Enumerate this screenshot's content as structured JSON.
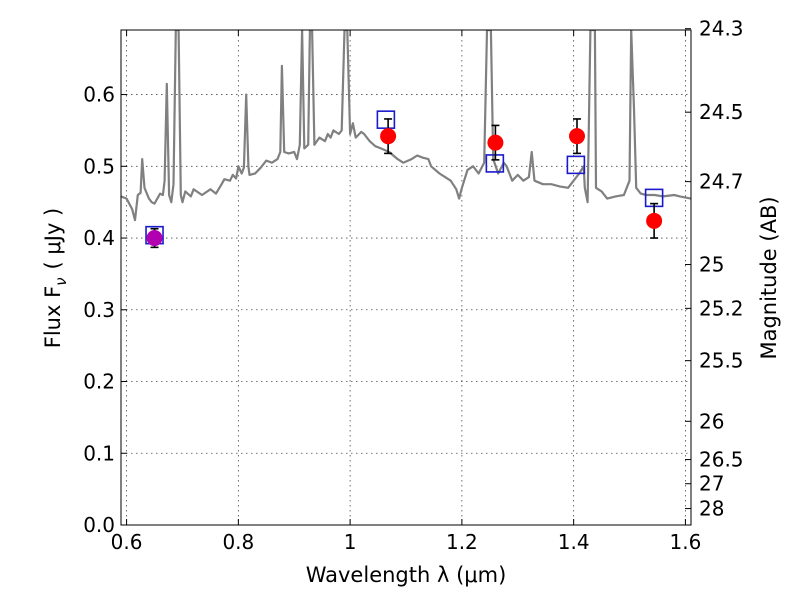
{
  "chart_data": {
    "type": "scatter",
    "xlabel": "Wavelength  λ (μm)",
    "ylabel": "Flux  F",
    "ylabel_subscript": "ν",
    "ylabel_units": "( μJy )",
    "y2label": "Magnitude (AB)",
    "xlim": [
      0.59,
      1.61
    ],
    "ylim": [
      0.0,
      0.69
    ],
    "grid": true,
    "x_ticks": [
      {
        "value": 0.6,
        "label": "0.6"
      },
      {
        "value": 0.8,
        "label": "0.8"
      },
      {
        "value": 1.0,
        "label": "1"
      },
      {
        "value": 1.2,
        "label": "1.2"
      },
      {
        "value": 1.4,
        "label": "1.4"
      },
      {
        "value": 1.6,
        "label": "1.6"
      }
    ],
    "y_ticks": [
      {
        "value": 0.0,
        "label": "0.0"
      },
      {
        "value": 0.1,
        "label": "0.1"
      },
      {
        "value": 0.2,
        "label": "0.2"
      },
      {
        "value": 0.3,
        "label": "0.3"
      },
      {
        "value": 0.4,
        "label": "0.4"
      },
      {
        "value": 0.5,
        "label": "0.5"
      },
      {
        "value": 0.6,
        "label": "0.6"
      }
    ],
    "y2_ticks": [
      {
        "mag": 24.3,
        "label": "24.3"
      },
      {
        "mag": 24.5,
        "label": "24.5"
      },
      {
        "mag": 24.7,
        "label": "24.7"
      },
      {
        "mag": 25.0,
        "label": "25"
      },
      {
        "mag": 25.2,
        "label": "25.2"
      },
      {
        "mag": 25.5,
        "label": "25.5"
      },
      {
        "mag": 26.0,
        "label": "26"
      },
      {
        "mag": 26.5,
        "label": "26.5"
      },
      {
        "mag": 27.0,
        "label": "27"
      },
      {
        "mag": 28.0,
        "label": "28"
      }
    ],
    "series": [
      {
        "kind": "spectrum",
        "color": "#808080",
        "points": [
          [
            0.59,
            0.458
          ],
          [
            0.6,
            0.455
          ],
          [
            0.61,
            0.44
          ],
          [
            0.615,
            0.425
          ],
          [
            0.62,
            0.46
          ],
          [
            0.625,
            0.463
          ],
          [
            0.628,
            0.51
          ],
          [
            0.632,
            0.47
          ],
          [
            0.64,
            0.455
          ],
          [
            0.645,
            0.45
          ],
          [
            0.65,
            0.448
          ],
          [
            0.655,
            0.455
          ],
          [
            0.66,
            0.462
          ],
          [
            0.665,
            0.46
          ],
          [
            0.668,
            0.48
          ],
          [
            0.672,
            0.615
          ],
          [
            0.676,
            0.46
          ],
          [
            0.68,
            0.45
          ],
          [
            0.684,
            0.475
          ],
          [
            0.688,
            0.69
          ],
          [
            0.693,
            0.69
          ],
          [
            0.697,
            0.46
          ],
          [
            0.7,
            0.45
          ],
          [
            0.705,
            0.465
          ],
          [
            0.715,
            0.458
          ],
          [
            0.72,
            0.468
          ],
          [
            0.735,
            0.46
          ],
          [
            0.75,
            0.468
          ],
          [
            0.76,
            0.462
          ],
          [
            0.77,
            0.475
          ],
          [
            0.775,
            0.482
          ],
          [
            0.785,
            0.48
          ],
          [
            0.79,
            0.488
          ],
          [
            0.796,
            0.483
          ],
          [
            0.8,
            0.5
          ],
          [
            0.806,
            0.49
          ],
          [
            0.81,
            0.498
          ],
          [
            0.814,
            0.6
          ],
          [
            0.818,
            0.5
          ],
          [
            0.82,
            0.488
          ],
          [
            0.83,
            0.49
          ],
          [
            0.84,
            0.498
          ],
          [
            0.85,
            0.508
          ],
          [
            0.86,
            0.505
          ],
          [
            0.87,
            0.51
          ],
          [
            0.875,
            0.52
          ],
          [
            0.878,
            0.64
          ],
          [
            0.882,
            0.52
          ],
          [
            0.89,
            0.518
          ],
          [
            0.9,
            0.52
          ],
          [
            0.905,
            0.51
          ],
          [
            0.91,
            0.53
          ],
          [
            0.914,
            0.69
          ],
          [
            0.918,
            0.525
          ],
          [
            0.925,
            0.53
          ],
          [
            0.928,
            0.69
          ],
          [
            0.932,
            0.69
          ],
          [
            0.936,
            0.53
          ],
          [
            0.945,
            0.54
          ],
          [
            0.955,
            0.535
          ],
          [
            0.96,
            0.545
          ],
          [
            0.965,
            0.54
          ],
          [
            0.97,
            0.55
          ],
          [
            0.98,
            0.545
          ],
          [
            0.985,
            0.55
          ],
          [
            0.99,
            0.69
          ],
          [
            0.995,
            0.69
          ],
          [
            1.0,
            0.545
          ],
          [
            1.005,
            0.56
          ],
          [
            1.01,
            0.54
          ],
          [
            1.02,
            0.548
          ],
          [
            1.025,
            0.545
          ],
          [
            1.035,
            0.535
          ],
          [
            1.045,
            0.528
          ],
          [
            1.055,
            0.525
          ],
          [
            1.07,
            0.52
          ],
          [
            1.085,
            0.51
          ],
          [
            1.095,
            0.505
          ],
          [
            1.11,
            0.51
          ],
          [
            1.12,
            0.515
          ],
          [
            1.13,
            0.512
          ],
          [
            1.14,
            0.51
          ],
          [
            1.145,
            0.5
          ],
          [
            1.16,
            0.49
          ],
          [
            1.17,
            0.485
          ],
          [
            1.18,
            0.48
          ],
          [
            1.19,
            0.468
          ],
          [
            1.195,
            0.455
          ],
          [
            1.2,
            0.47
          ],
          [
            1.21,
            0.495
          ],
          [
            1.22,
            0.5
          ],
          [
            1.23,
            0.49
          ],
          [
            1.24,
            0.505
          ],
          [
            1.245,
            0.69
          ],
          [
            1.252,
            0.69
          ],
          [
            1.256,
            0.51
          ],
          [
            1.265,
            0.49
          ],
          [
            1.275,
            0.505
          ],
          [
            1.28,
            0.5
          ],
          [
            1.29,
            0.48
          ],
          [
            1.3,
            0.488
          ],
          [
            1.31,
            0.48
          ],
          [
            1.32,
            0.485
          ],
          [
            1.325,
            0.52
          ],
          [
            1.33,
            0.48
          ],
          [
            1.345,
            0.475
          ],
          [
            1.36,
            0.475
          ],
          [
            1.375,
            0.472
          ],
          [
            1.39,
            0.47
          ],
          [
            1.4,
            0.48
          ],
          [
            1.41,
            0.49
          ],
          [
            1.418,
            0.5
          ],
          [
            1.42,
            0.47
          ],
          [
            1.425,
            0.45
          ],
          [
            1.43,
            0.69
          ],
          [
            1.438,
            0.69
          ],
          [
            1.44,
            0.47
          ],
          [
            1.45,
            0.465
          ],
          [
            1.46,
            0.455
          ],
          [
            1.475,
            0.458
          ],
          [
            1.49,
            0.46
          ],
          [
            1.5,
            0.48
          ],
          [
            1.503,
            0.69
          ],
          [
            1.508,
            0.58
          ],
          [
            1.512,
            0.47
          ],
          [
            1.52,
            0.462
          ],
          [
            1.53,
            0.46
          ],
          [
            1.545,
            0.46
          ],
          [
            1.56,
            0.458
          ],
          [
            1.58,
            0.46
          ],
          [
            1.59,
            0.458
          ],
          [
            1.61,
            0.455
          ]
        ]
      },
      {
        "kind": "model",
        "marker": "open-square",
        "color": "#1a1acc",
        "points": [
          [
            0.65,
            0.404
          ],
          [
            1.064,
            0.565
          ],
          [
            1.259,
            0.504
          ],
          [
            1.404,
            0.502
          ],
          [
            1.544,
            0.456
          ]
        ]
      },
      {
        "kind": "observed",
        "marker": "filled-circle",
        "color": "#ff0000",
        "points": [
          {
            "x": 1.068,
            "y": 0.542,
            "err": 0.024
          },
          {
            "x": 1.26,
            "y": 0.533,
            "err": 0.024
          },
          {
            "x": 1.406,
            "y": 0.542,
            "err": 0.024
          },
          {
            "x": 1.544,
            "y": 0.424,
            "err": 0.024
          }
        ]
      },
      {
        "kind": "observed-alt",
        "marker": "filled-circle",
        "color": "#b000b0",
        "points": [
          {
            "x": 0.65,
            "y": 0.4,
            "err": 0.013
          }
        ]
      }
    ]
  }
}
